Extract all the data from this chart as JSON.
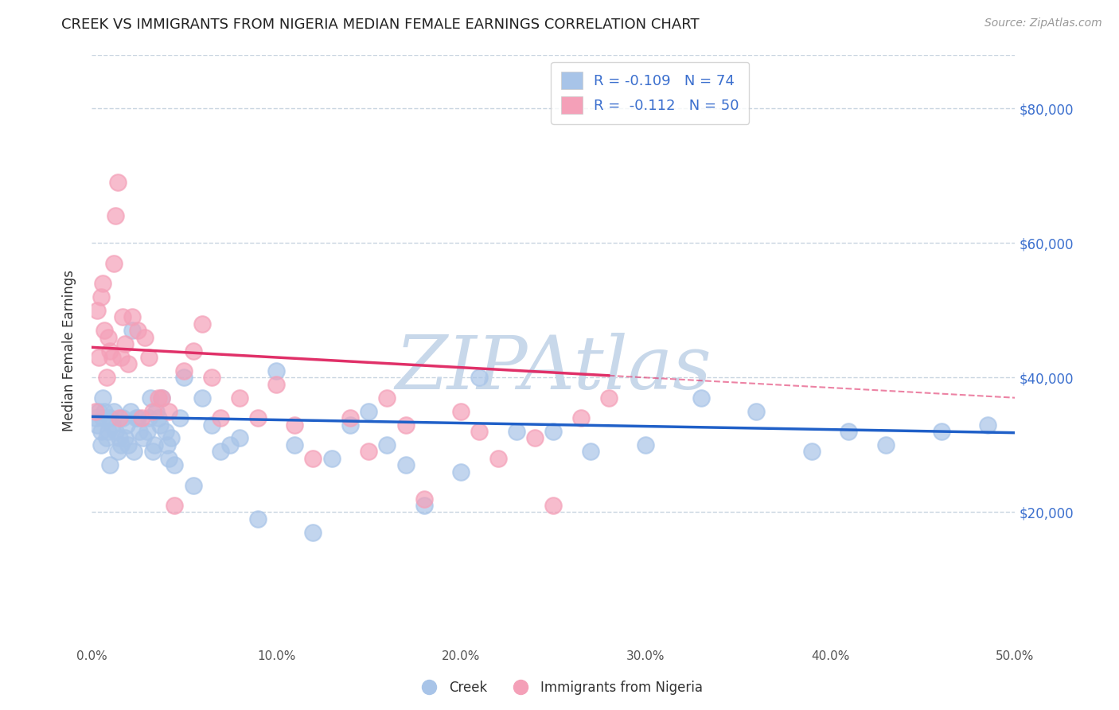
{
  "title": "CREEK VS IMMIGRANTS FROM NIGERIA MEDIAN FEMALE EARNINGS CORRELATION CHART",
  "source": "Source: ZipAtlas.com",
  "ylabel": "Median Female Earnings",
  "xlim": [
    0.0,
    0.5
  ],
  "ylim": [
    0,
    88000
  ],
  "yticks": [
    0,
    20000,
    40000,
    60000,
    80000
  ],
  "xticks": [
    0.0,
    0.1,
    0.2,
    0.3,
    0.4,
    0.5
  ],
  "creek_color": "#a8c4e8",
  "nigeria_color": "#f4a0b8",
  "creek_line_color": "#2060c8",
  "nigeria_line_color": "#e03068",
  "creek_R": -0.109,
  "creek_N": 74,
  "nigeria_R": -0.112,
  "nigeria_N": 50,
  "watermark": "ZIPAtlas",
  "watermark_color": "#c8d8ea",
  "background_color": "#ffffff",
  "grid_color": "#c8d4e0",
  "title_color": "#222222",
  "creek_x": [
    0.002,
    0.003,
    0.004,
    0.005,
    0.005,
    0.006,
    0.006,
    0.007,
    0.008,
    0.009,
    0.01,
    0.01,
    0.011,
    0.012,
    0.013,
    0.014,
    0.015,
    0.016,
    0.017,
    0.018,
    0.019,
    0.02,
    0.021,
    0.022,
    0.023,
    0.024,
    0.025,
    0.026,
    0.028,
    0.03,
    0.031,
    0.032,
    0.033,
    0.034,
    0.035,
    0.036,
    0.037,
    0.038,
    0.04,
    0.041,
    0.042,
    0.043,
    0.045,
    0.048,
    0.05,
    0.055,
    0.06,
    0.065,
    0.07,
    0.075,
    0.08,
    0.09,
    0.1,
    0.11,
    0.12,
    0.13,
    0.14,
    0.15,
    0.16,
    0.17,
    0.18,
    0.2,
    0.21,
    0.23,
    0.25,
    0.27,
    0.3,
    0.33,
    0.36,
    0.39,
    0.41,
    0.43,
    0.46,
    0.485
  ],
  "creek_y": [
    34000,
    33000,
    35000,
    32000,
    30000,
    37000,
    34000,
    35000,
    31000,
    32000,
    27000,
    34000,
    33000,
    35000,
    32000,
    29000,
    31000,
    30000,
    34000,
    31000,
    33000,
    30000,
    35000,
    47000,
    29000,
    34000,
    34000,
    32000,
    31000,
    32000,
    34000,
    37000,
    29000,
    30000,
    35000,
    34000,
    33000,
    37000,
    32000,
    30000,
    28000,
    31000,
    27000,
    34000,
    40000,
    24000,
    37000,
    33000,
    29000,
    30000,
    31000,
    19000,
    41000,
    30000,
    17000,
    28000,
    33000,
    35000,
    30000,
    27000,
    21000,
    26000,
    40000,
    32000,
    32000,
    29000,
    30000,
    37000,
    35000,
    29000,
    32000,
    30000,
    32000,
    33000
  ],
  "nigeria_x": [
    0.002,
    0.003,
    0.004,
    0.005,
    0.006,
    0.007,
    0.008,
    0.009,
    0.01,
    0.011,
    0.012,
    0.013,
    0.014,
    0.015,
    0.016,
    0.017,
    0.018,
    0.02,
    0.022,
    0.025,
    0.027,
    0.029,
    0.031,
    0.033,
    0.036,
    0.038,
    0.042,
    0.045,
    0.05,
    0.055,
    0.06,
    0.065,
    0.07,
    0.08,
    0.09,
    0.1,
    0.11,
    0.12,
    0.14,
    0.15,
    0.16,
    0.17,
    0.18,
    0.2,
    0.21,
    0.22,
    0.24,
    0.25,
    0.265,
    0.28
  ],
  "nigeria_y": [
    35000,
    50000,
    43000,
    52000,
    54000,
    47000,
    40000,
    46000,
    44000,
    43000,
    57000,
    64000,
    69000,
    34000,
    43000,
    49000,
    45000,
    42000,
    49000,
    47000,
    34000,
    46000,
    43000,
    35000,
    37000,
    37000,
    35000,
    21000,
    41000,
    44000,
    48000,
    40000,
    34000,
    37000,
    34000,
    39000,
    33000,
    28000,
    34000,
    29000,
    37000,
    33000,
    22000,
    35000,
    32000,
    28000,
    31000,
    21000,
    34000,
    37000
  ],
  "nigeria_data_xlim": 0.28
}
